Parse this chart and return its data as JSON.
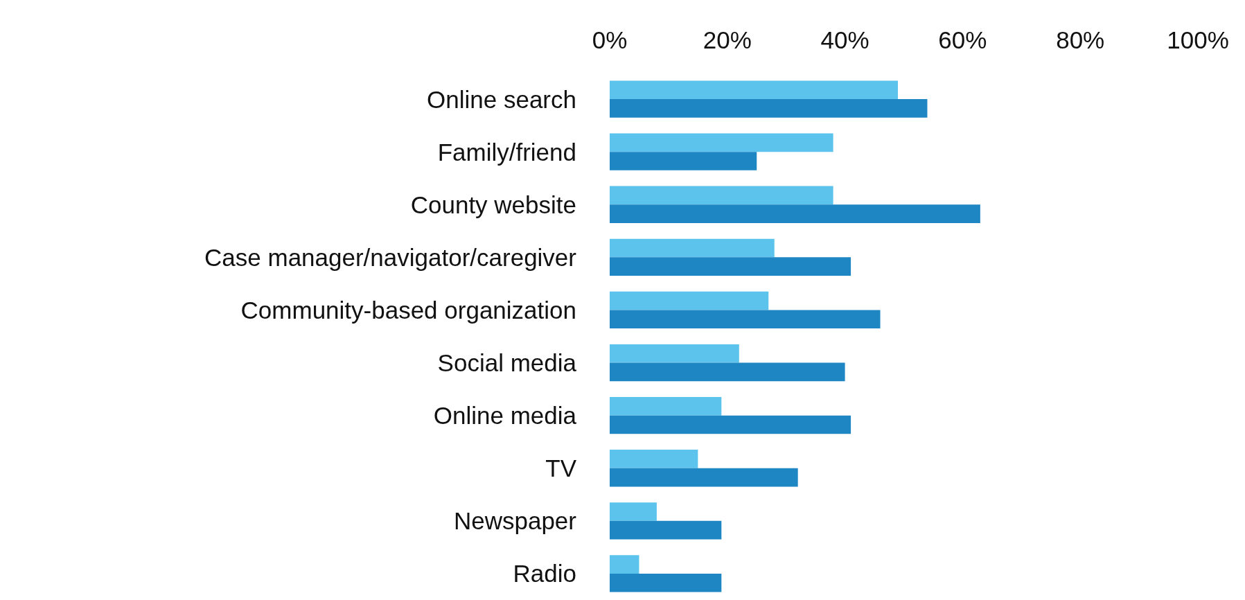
{
  "chart_data": {
    "type": "bar",
    "orientation": "horizontal",
    "categories": [
      "Online search",
      "Family/friend",
      "County website",
      "Case manager/navigator/caregiver",
      "Community-based organization",
      "Social media",
      "Online media",
      "TV",
      "Newspaper",
      "Radio"
    ],
    "series": [
      {
        "color": "#5bc3ec",
        "values": [
          49,
          38,
          38,
          28,
          27,
          22,
          19,
          15,
          8,
          5
        ]
      },
      {
        "color": "#1f86c4",
        "values": [
          54,
          25,
          63,
          41,
          46,
          40,
          41,
          32,
          19,
          19
        ]
      }
    ],
    "xlim": [
      0,
      100
    ],
    "xticks": [
      {
        "value": 0,
        "label": "0%"
      },
      {
        "value": 20,
        "label": "20%"
      },
      {
        "value": 40,
        "label": "40%"
      },
      {
        "value": 60,
        "label": "60%"
      },
      {
        "value": 80,
        "label": "80%"
      },
      {
        "value": 100,
        "label": "100%"
      }
    ],
    "grid": false
  }
}
